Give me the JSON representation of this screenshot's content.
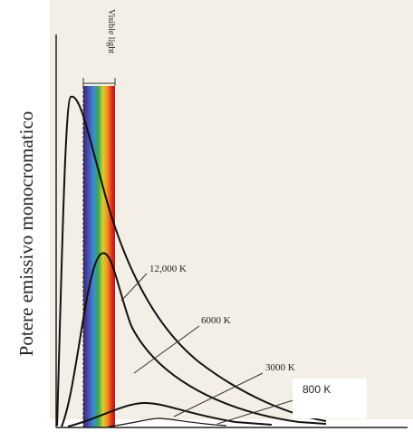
{
  "figure": {
    "y_axis_label": "Potere emissivo monocromatico",
    "visible_label": "Visible light",
    "curves": [
      {
        "label": "12,000 K"
      },
      {
        "label": "6000 K"
      },
      {
        "label": "3000 K"
      },
      {
        "label": "800 K"
      }
    ]
  }
}
